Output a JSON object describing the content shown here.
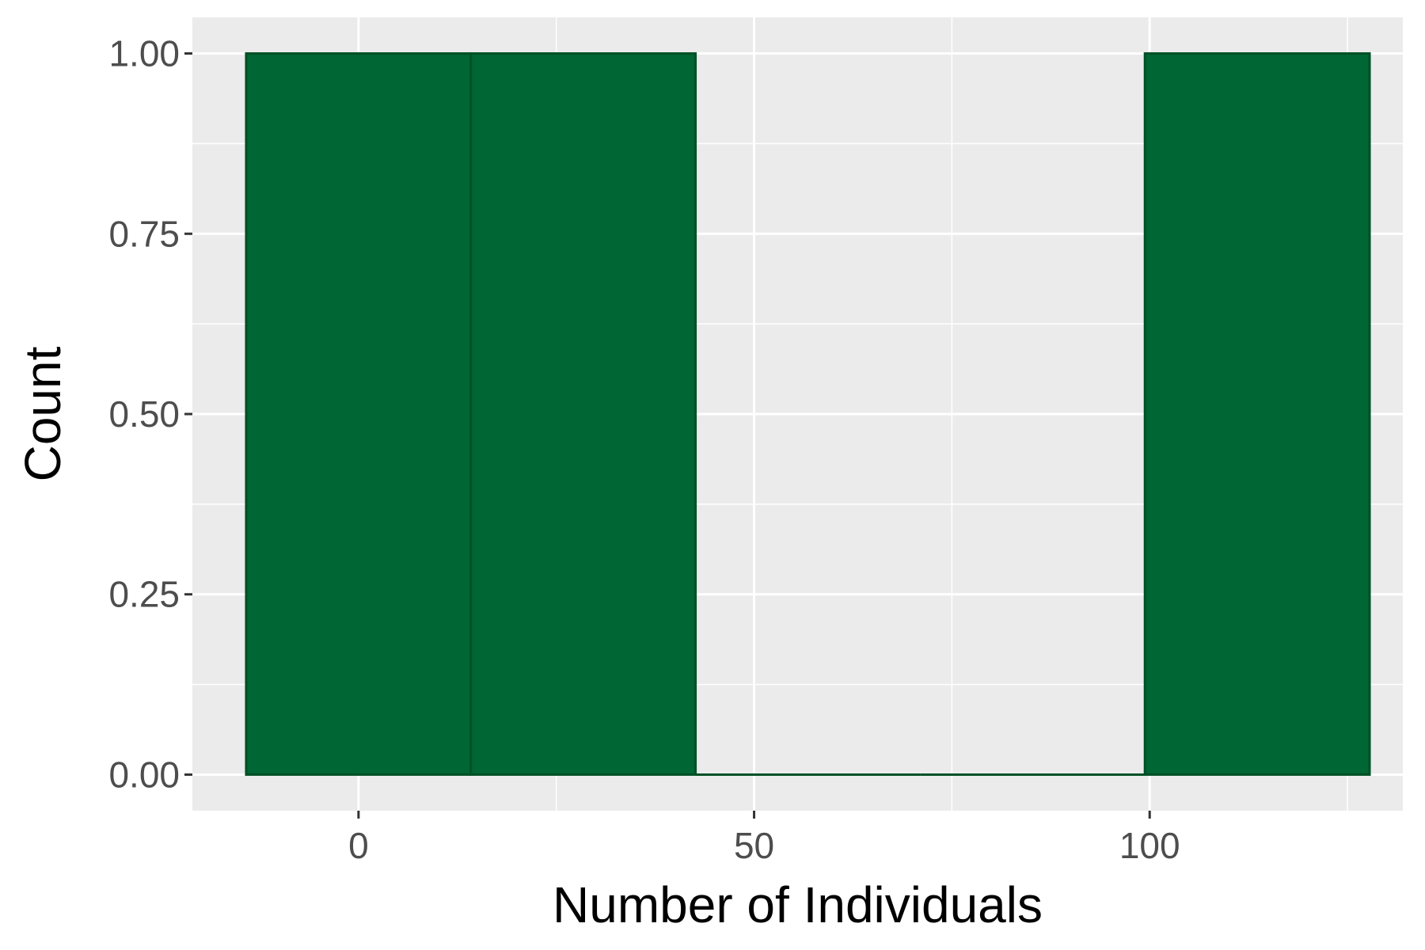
{
  "chart_data": {
    "type": "bar",
    "subtype": "histogram",
    "title": "",
    "xlabel": "Number of Individuals",
    "ylabel": "Count",
    "xlim": [
      -21,
      132
    ],
    "ylim": [
      -0.05,
      1.05
    ],
    "x_ticks": [
      0,
      50,
      100
    ],
    "x_tick_labels": [
      "0",
      "50",
      "100"
    ],
    "y_ticks": [
      0,
      0.25,
      0.5,
      0.75,
      1
    ],
    "y_tick_labels": [
      "0.00",
      "0.25",
      "0.50",
      "0.75",
      "1.00"
    ],
    "bins": [
      {
        "x_start": -14.2,
        "x_end": 14.2,
        "count": 1
      },
      {
        "x_start": 14.2,
        "x_end": 42.6,
        "count": 1
      },
      {
        "x_start": 42.6,
        "x_end": 71.0,
        "count": 0
      },
      {
        "x_start": 71.0,
        "x_end": 99.4,
        "count": 0
      },
      {
        "x_start": 99.4,
        "x_end": 127.8,
        "count": 1
      }
    ],
    "grid": true,
    "colors": {
      "bar_fill": "#006633",
      "bar_outline": "#005026",
      "panel_background": "#ebebeb",
      "grid": "#ffffff",
      "tick_text": "#4d4d4d",
      "axis_title": "#000000"
    }
  }
}
